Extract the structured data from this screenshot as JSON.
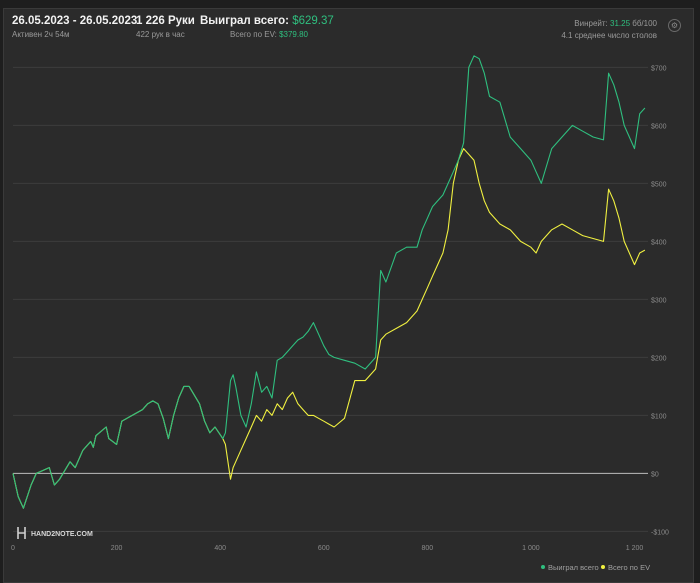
{
  "header": {
    "date_range": "26.05.2023 - 26.05.2023",
    "active_time": "Активен 2ч 54м",
    "hands": "1 226 Руки",
    "hands_per_hour": "422 рук в час",
    "won_label": "Выиграл всего:",
    "won_value": "$629.37",
    "ev_label": "Всего по EV:",
    "ev_value": "$379.80",
    "winrate_label": "Винрейт:",
    "winrate_value": "31.25",
    "winrate_unit": "бб/100",
    "avg_tables": "4.1 среднее число столов"
  },
  "logo_text": "HAND2NOTE.COM",
  "colors": {
    "won": "#2fbf7f",
    "ev": "#f0f040",
    "background": "#2b2b2b",
    "zero_line": "#bdbdbd"
  },
  "chart_data": {
    "type": "line",
    "xlim": [
      0,
      1226
    ],
    "ylim": [
      -120,
      730
    ],
    "x_ticks": [
      0,
      200,
      400,
      600,
      800,
      1000,
      1200
    ],
    "x_tick_labels": [
      "0",
      "200",
      "400",
      "600",
      "800",
      "1 000",
      "1 200"
    ],
    "y_ticks": [
      -100,
      0,
      100,
      200,
      300,
      400,
      500,
      600,
      700
    ],
    "y_tick_labels": [
      "-$100",
      "$0",
      "$100",
      "$200",
      "$300",
      "$400",
      "$500",
      "$600",
      "$700"
    ],
    "legend_position": "bottom-right",
    "grid": true,
    "series": [
      {
        "name": "Выиграл всего",
        "color": "#2fbf7f",
        "x": [
          0,
          10,
          20,
          35,
          45,
          70,
          80,
          90,
          110,
          120,
          135,
          150,
          155,
          160,
          180,
          185,
          200,
          210,
          250,
          260,
          270,
          280,
          290,
          300,
          310,
          320,
          330,
          340,
          360,
          370,
          380,
          390,
          405,
          410,
          420,
          425,
          430,
          440,
          450,
          460,
          470,
          480,
          490,
          500,
          510,
          520,
          530,
          540,
          550,
          560,
          570,
          580,
          590,
          600,
          610,
          620,
          640,
          660,
          680,
          700,
          710,
          720,
          740,
          760,
          780,
          790,
          800,
          810,
          820,
          830,
          840,
          850,
          860,
          870,
          880,
          890,
          900,
          910,
          920,
          940,
          960,
          980,
          1000,
          1010,
          1020,
          1040,
          1060,
          1080,
          1100,
          1120,
          1140,
          1150,
          1160,
          1170,
          1180,
          1200,
          1210,
          1220
        ],
        "y": [
          0,
          -40,
          -60,
          -20,
          0,
          10,
          -20,
          -10,
          20,
          10,
          40,
          55,
          45,
          65,
          80,
          60,
          50,
          90,
          110,
          120,
          125,
          120,
          95,
          60,
          100,
          130,
          150,
          150,
          120,
          90,
          70,
          80,
          60,
          70,
          160,
          170,
          150,
          100,
          80,
          120,
          175,
          140,
          150,
          130,
          195,
          200,
          210,
          220,
          230,
          235,
          245,
          260,
          240,
          220,
          205,
          200,
          195,
          190,
          180,
          200,
          350,
          330,
          380,
          390,
          390,
          420,
          440,
          460,
          470,
          480,
          500,
          520,
          540,
          570,
          700,
          720,
          715,
          690,
          650,
          640,
          580,
          560,
          540,
          520,
          500,
          560,
          580,
          600,
          590,
          580,
          575,
          690,
          670,
          640,
          600,
          560,
          620,
          630
        ]
      },
      {
        "name": "Всего по EV",
        "color": "#f0f040",
        "x": [
          0,
          10,
          20,
          35,
          45,
          70,
          80,
          90,
          110,
          120,
          135,
          150,
          155,
          160,
          180,
          185,
          200,
          210,
          250,
          260,
          270,
          280,
          290,
          300,
          310,
          320,
          330,
          340,
          360,
          370,
          380,
          390,
          405,
          410,
          420,
          425,
          430,
          440,
          450,
          460,
          470,
          480,
          490,
          500,
          510,
          520,
          530,
          540,
          550,
          560,
          570,
          580,
          590,
          600,
          610,
          620,
          640,
          660,
          680,
          700,
          710,
          720,
          740,
          760,
          780,
          790,
          800,
          810,
          820,
          830,
          840,
          850,
          860,
          870,
          880,
          890,
          900,
          910,
          920,
          940,
          960,
          980,
          1000,
          1010,
          1020,
          1040,
          1060,
          1080,
          1100,
          1120,
          1140,
          1150,
          1160,
          1170,
          1180,
          1200,
          1210,
          1220
        ],
        "y": [
          0,
          -40,
          -60,
          -20,
          0,
          10,
          -20,
          -10,
          20,
          10,
          40,
          55,
          45,
          65,
          80,
          60,
          50,
          90,
          110,
          120,
          125,
          120,
          95,
          60,
          100,
          130,
          150,
          150,
          120,
          90,
          70,
          80,
          60,
          50,
          -10,
          10,
          20,
          40,
          60,
          80,
          100,
          90,
          110,
          100,
          120,
          110,
          130,
          140,
          120,
          110,
          100,
          100,
          95,
          90,
          85,
          80,
          95,
          160,
          160,
          180,
          230,
          240,
          250,
          260,
          280,
          300,
          320,
          340,
          360,
          380,
          420,
          500,
          540,
          560,
          550,
          540,
          500,
          470,
          450,
          430,
          420,
          400,
          390,
          380,
          400,
          420,
          430,
          420,
          410,
          405,
          400,
          490,
          470,
          440,
          400,
          360,
          380,
          385
        ]
      }
    ]
  }
}
